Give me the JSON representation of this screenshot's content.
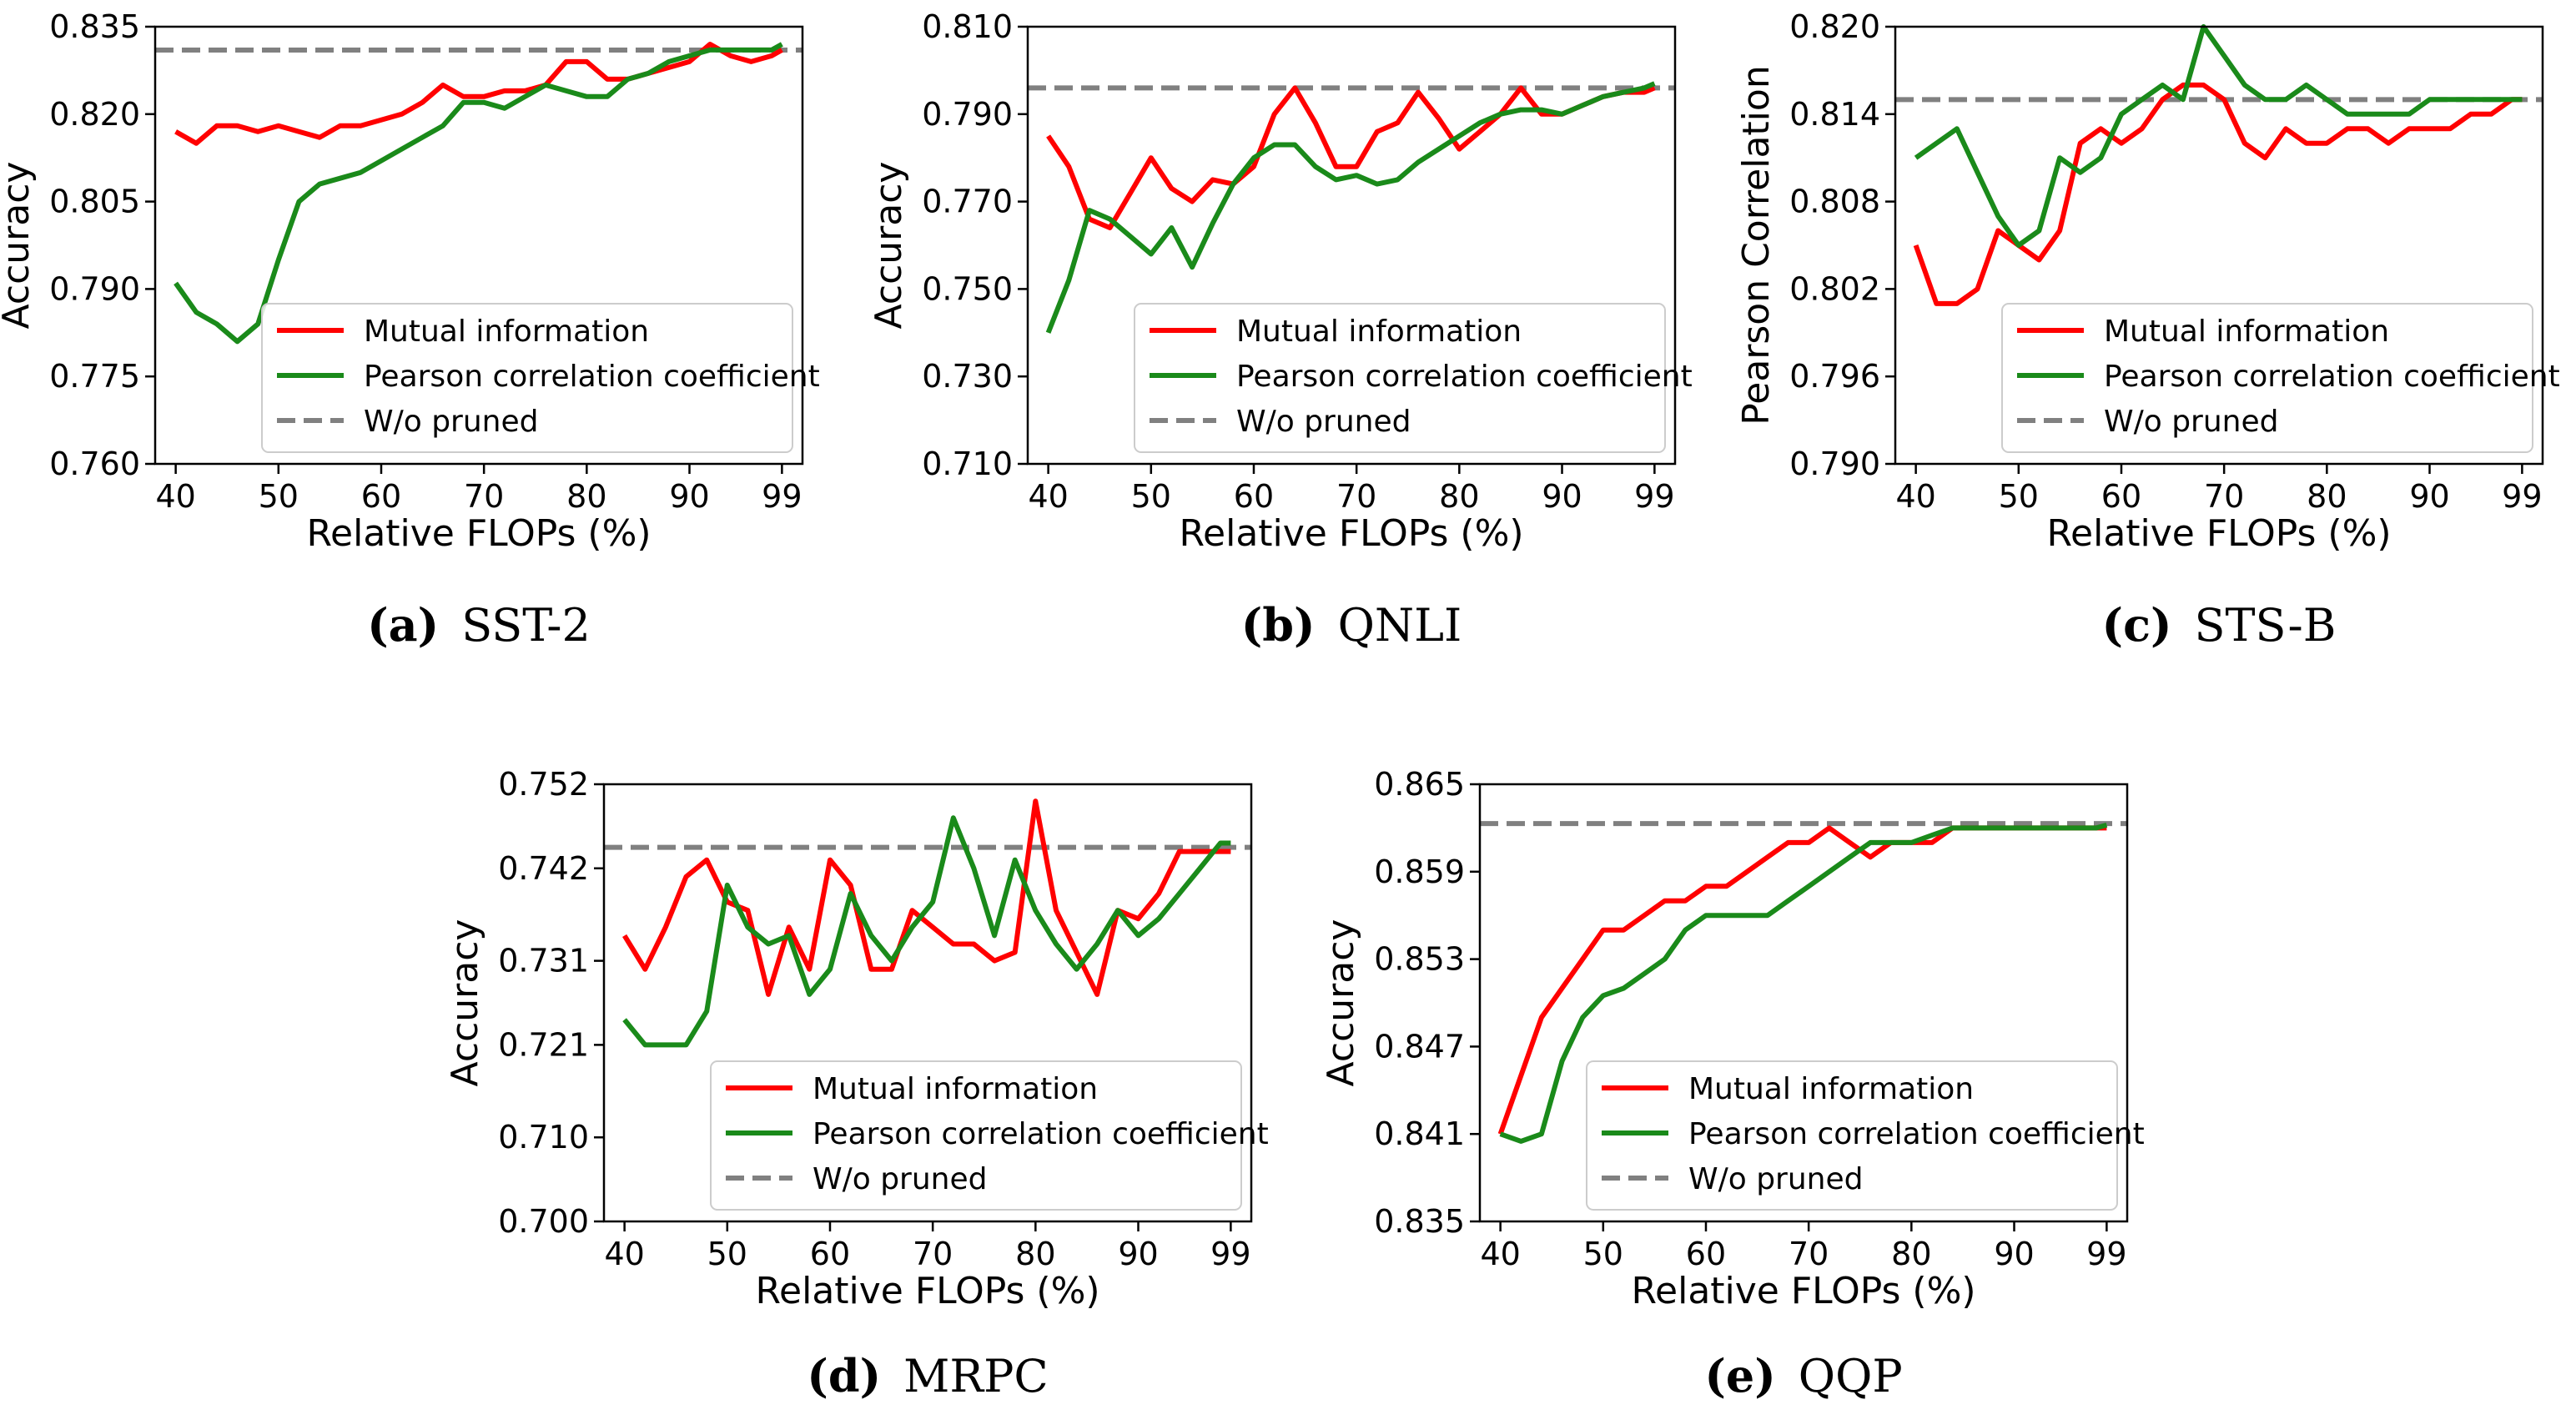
{
  "colors": {
    "mi": "#ff0000",
    "pcc": "#1a8a1a",
    "baseline": "#808080",
    "axis": "#000000"
  },
  "legend": {
    "mi": "Mutual information",
    "pcc": "Pearson correlation coefficient",
    "baseline": "W/o pruned"
  },
  "chart_data": [
    {
      "id": "a",
      "type": "line",
      "caption_letter": "(a)",
      "caption_text": "SST-2",
      "xlabel": "Relative FLOPs (%)",
      "ylabel": "Accuracy",
      "xticks": [
        40,
        50,
        60,
        70,
        80,
        90,
        99
      ],
      "yticks": [
        "0.760",
        "0.775",
        "0.790",
        "0.805",
        "0.820",
        "0.835"
      ],
      "xlim": [
        38,
        101
      ],
      "ylim": [
        0.76,
        0.835
      ],
      "baseline": 0.831,
      "series": [
        {
          "name": "Mutual information",
          "key": "mi",
          "x": [
            40,
            42,
            44,
            46,
            48,
            50,
            52,
            54,
            56,
            58,
            60,
            62,
            64,
            66,
            68,
            70,
            72,
            74,
            76,
            78,
            80,
            82,
            84,
            86,
            88,
            90,
            92,
            94,
            96,
            98,
            99
          ],
          "y": [
            0.817,
            0.815,
            0.818,
            0.818,
            0.817,
            0.818,
            0.817,
            0.816,
            0.818,
            0.818,
            0.819,
            0.82,
            0.822,
            0.825,
            0.823,
            0.823,
            0.824,
            0.824,
            0.825,
            0.829,
            0.829,
            0.826,
            0.826,
            0.827,
            0.828,
            0.829,
            0.832,
            0.83,
            0.829,
            0.83,
            0.831
          ]
        },
        {
          "name": "Pearson correlation coefficient",
          "key": "pcc",
          "x": [
            40,
            42,
            44,
            46,
            48,
            50,
            52,
            54,
            56,
            58,
            60,
            62,
            64,
            66,
            68,
            70,
            72,
            74,
            76,
            78,
            80,
            82,
            84,
            86,
            88,
            90,
            92,
            94,
            96,
            98,
            99
          ],
          "y": [
            0.791,
            0.786,
            0.784,
            0.781,
            0.784,
            0.795,
            0.805,
            0.808,
            0.809,
            0.81,
            0.812,
            0.814,
            0.816,
            0.818,
            0.822,
            0.822,
            0.821,
            0.823,
            0.825,
            0.824,
            0.823,
            0.823,
            0.826,
            0.827,
            0.829,
            0.83,
            0.831,
            0.831,
            0.831,
            0.831,
            0.832
          ]
        }
      ]
    },
    {
      "id": "b",
      "type": "line",
      "caption_letter": "(b)",
      "caption_text": "QNLI",
      "xlabel": "Relative FLOPs (%)",
      "ylabel": "Accuracy",
      "xticks": [
        40,
        50,
        60,
        70,
        80,
        90,
        99
      ],
      "yticks": [
        "0.710",
        "0.730",
        "0.750",
        "0.770",
        "0.790",
        "0.810"
      ],
      "xlim": [
        38,
        101
      ],
      "ylim": [
        0.71,
        0.81
      ],
      "baseline": 0.796,
      "series": [
        {
          "name": "Mutual information",
          "key": "mi",
          "x": [
            40,
            42,
            44,
            46,
            48,
            50,
            52,
            54,
            56,
            58,
            60,
            62,
            64,
            66,
            68,
            70,
            72,
            74,
            76,
            78,
            80,
            82,
            84,
            86,
            88,
            90,
            92,
            94,
            96,
            98,
            99
          ],
          "y": [
            0.785,
            0.778,
            0.766,
            0.764,
            0.772,
            0.78,
            0.773,
            0.77,
            0.775,
            0.774,
            0.778,
            0.79,
            0.796,
            0.788,
            0.778,
            0.778,
            0.786,
            0.788,
            0.795,
            0.789,
            0.782,
            0.786,
            0.79,
            0.796,
            0.79,
            0.79,
            0.792,
            0.794,
            0.795,
            0.795,
            0.796
          ]
        },
        {
          "name": "Pearson correlation coefficient",
          "key": "pcc",
          "x": [
            40,
            42,
            44,
            46,
            48,
            50,
            52,
            54,
            56,
            58,
            60,
            62,
            64,
            66,
            68,
            70,
            72,
            74,
            76,
            78,
            80,
            82,
            84,
            86,
            88,
            90,
            92,
            94,
            96,
            98,
            99
          ],
          "y": [
            0.74,
            0.752,
            0.768,
            0.766,
            0.762,
            0.758,
            0.764,
            0.755,
            0.765,
            0.774,
            0.78,
            0.783,
            0.783,
            0.778,
            0.775,
            0.776,
            0.774,
            0.775,
            0.779,
            0.782,
            0.785,
            0.788,
            0.79,
            0.791,
            0.791,
            0.79,
            0.792,
            0.794,
            0.795,
            0.796,
            0.797
          ]
        }
      ]
    },
    {
      "id": "c",
      "type": "line",
      "caption_letter": "(c)",
      "caption_text": "STS-B",
      "xlabel": "Relative FLOPs (%)",
      "ylabel": "Pearson Correlation",
      "xticks": [
        40,
        50,
        60,
        70,
        80,
        90,
        99
      ],
      "yticks": [
        "0.790",
        "0.796",
        "0.802",
        "0.808",
        "0.814",
        "0.820"
      ],
      "xlim": [
        38,
        101
      ],
      "ylim": [
        0.79,
        0.82
      ],
      "baseline": 0.815,
      "series": [
        {
          "name": "Mutual information",
          "key": "mi",
          "x": [
            40,
            42,
            44,
            46,
            48,
            50,
            52,
            54,
            56,
            58,
            60,
            62,
            64,
            66,
            68,
            70,
            72,
            74,
            76,
            78,
            80,
            82,
            84,
            86,
            88,
            90,
            92,
            94,
            96,
            98,
            99
          ],
          "y": [
            0.805,
            0.801,
            0.801,
            0.802,
            0.806,
            0.805,
            0.804,
            0.806,
            0.812,
            0.813,
            0.812,
            0.813,
            0.815,
            0.816,
            0.816,
            0.815,
            0.812,
            0.811,
            0.813,
            0.812,
            0.812,
            0.813,
            0.813,
            0.812,
            0.813,
            0.813,
            0.813,
            0.814,
            0.814,
            0.815,
            0.815
          ]
        },
        {
          "name": "Pearson correlation coefficient",
          "key": "pcc",
          "x": [
            40,
            42,
            44,
            46,
            48,
            50,
            52,
            54,
            56,
            58,
            60,
            62,
            64,
            66,
            68,
            70,
            72,
            74,
            76,
            78,
            80,
            82,
            84,
            86,
            88,
            90,
            92,
            94,
            96,
            98,
            99
          ],
          "y": [
            0.811,
            0.812,
            0.813,
            0.81,
            0.807,
            0.805,
            0.806,
            0.811,
            0.81,
            0.811,
            0.814,
            0.815,
            0.816,
            0.815,
            0.82,
            0.818,
            0.816,
            0.815,
            0.815,
            0.816,
            0.815,
            0.814,
            0.814,
            0.814,
            0.814,
            0.815,
            0.815,
            0.815,
            0.815,
            0.815,
            0.815
          ]
        }
      ]
    },
    {
      "id": "d",
      "type": "line",
      "caption_letter": "(d)",
      "caption_text": "MRPC",
      "xlabel": "Relative FLOPs (%)",
      "ylabel": "Accuracy",
      "xticks": [
        40,
        50,
        60,
        70,
        80,
        90,
        99
      ],
      "yticks": [
        "0.700",
        "0.710",
        "0.721",
        "0.731",
        "0.742",
        "0.752"
      ],
      "xlim": [
        38,
        101
      ],
      "ylim": [
        0.7,
        0.752
      ],
      "baseline": 0.7445,
      "series": [
        {
          "name": "Mutual information",
          "key": "mi",
          "x": [
            40,
            42,
            44,
            46,
            48,
            50,
            52,
            54,
            56,
            58,
            60,
            62,
            64,
            66,
            68,
            70,
            72,
            74,
            76,
            78,
            80,
            82,
            84,
            86,
            88,
            90,
            92,
            94,
            96,
            98,
            99
          ],
          "y": [
            0.734,
            0.73,
            0.735,
            0.741,
            0.743,
            0.738,
            0.737,
            0.727,
            0.735,
            0.73,
            0.743,
            0.74,
            0.73,
            0.73,
            0.737,
            0.735,
            0.733,
            0.733,
            0.731,
            0.732,
            0.75,
            0.737,
            0.732,
            0.727,
            0.737,
            0.736,
            0.739,
            0.744,
            0.744,
            0.744,
            0.744
          ]
        },
        {
          "name": "Pearson correlation coefficient",
          "key": "pcc",
          "x": [
            40,
            42,
            44,
            46,
            48,
            50,
            52,
            54,
            56,
            58,
            60,
            62,
            64,
            66,
            68,
            70,
            72,
            74,
            76,
            78,
            80,
            82,
            84,
            86,
            88,
            90,
            92,
            94,
            96,
            98,
            99
          ],
          "y": [
            0.724,
            0.721,
            0.721,
            0.721,
            0.725,
            0.74,
            0.735,
            0.733,
            0.734,
            0.727,
            0.73,
            0.739,
            0.734,
            0.731,
            0.735,
            0.738,
            0.748,
            0.742,
            0.734,
            0.743,
            0.737,
            0.733,
            0.73,
            0.733,
            0.737,
            0.734,
            0.736,
            0.739,
            0.742,
            0.745,
            0.745
          ]
        }
      ]
    },
    {
      "id": "e",
      "type": "line",
      "caption_letter": "(e)",
      "caption_text": "QQP",
      "xlabel": "Relative FLOPs (%)",
      "ylabel": "Accuracy",
      "xticks": [
        40,
        50,
        60,
        70,
        80,
        90,
        99
      ],
      "yticks": [
        "0.835",
        "0.841",
        "0.847",
        "0.853",
        "0.859",
        "0.865"
      ],
      "xlim": [
        38,
        101
      ],
      "ylim": [
        0.835,
        0.865
      ],
      "baseline": 0.8623,
      "series": [
        {
          "name": "Mutual information",
          "key": "mi",
          "x": [
            40,
            42,
            44,
            46,
            48,
            50,
            52,
            54,
            56,
            58,
            60,
            62,
            64,
            66,
            68,
            70,
            72,
            74,
            76,
            78,
            80,
            82,
            84,
            86,
            88,
            90,
            92,
            94,
            96,
            98,
            99
          ],
          "y": [
            0.841,
            0.845,
            0.849,
            0.851,
            0.853,
            0.855,
            0.855,
            0.856,
            0.857,
            0.857,
            0.858,
            0.858,
            0.859,
            0.86,
            0.861,
            0.861,
            0.862,
            0.861,
            0.86,
            0.861,
            0.861,
            0.861,
            0.862,
            0.862,
            0.862,
            0.862,
            0.862,
            0.862,
            0.862,
            0.862,
            0.862
          ]
        },
        {
          "name": "Pearson correlation coefficient",
          "key": "pcc",
          "x": [
            40,
            42,
            44,
            46,
            48,
            50,
            52,
            54,
            56,
            58,
            60,
            62,
            64,
            66,
            68,
            70,
            72,
            74,
            76,
            78,
            80,
            82,
            84,
            86,
            88,
            90,
            92,
            94,
            96,
            98,
            99
          ],
          "y": [
            0.841,
            0.8405,
            0.841,
            0.846,
            0.849,
            0.8505,
            0.851,
            0.852,
            0.853,
            0.855,
            0.856,
            0.856,
            0.856,
            0.856,
            0.857,
            0.858,
            0.859,
            0.86,
            0.861,
            0.861,
            0.861,
            0.8615,
            0.862,
            0.862,
            0.862,
            0.862,
            0.862,
            0.862,
            0.862,
            0.862,
            0.8622
          ]
        }
      ]
    }
  ]
}
